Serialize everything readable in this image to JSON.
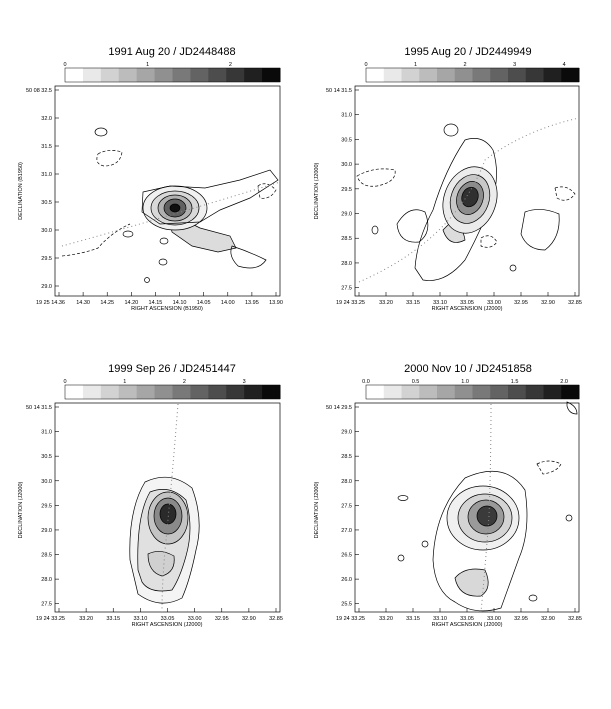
{
  "panels": [
    {
      "title": "1991 Aug 20 / JD2448488",
      "colorbar_ticks": [
        "0",
        "1",
        "2"
      ],
      "colorbar_tick_values": [
        0,
        1,
        2
      ],
      "colorbar_max": 2.6,
      "ylabel": "DECLINATION (B1950)",
      "xlabel": "RIGHT ASCENSION (B1950)",
      "yticks": [
        "50 08 32.5",
        "32.0",
        "31.5",
        "31.0",
        "30.5",
        "30.0",
        "29.5",
        "29.0"
      ],
      "xticks": [
        "19 25 14.36",
        "14.30",
        "14.25",
        "14.20",
        "14.15",
        "14.10",
        "14.05",
        "14.00",
        "13.95",
        "13.90"
      ]
    },
    {
      "title": "1995 Aug 20 / JD2449949",
      "colorbar_ticks": [
        "0",
        "1",
        "2",
        "3",
        "4"
      ],
      "colorbar_tick_values": [
        0,
        1,
        2,
        3,
        4
      ],
      "colorbar_max": 4.3,
      "ylabel": "DECLINATION (J2000)",
      "xlabel": "RIGHT ASCENSION (J2000)",
      "yticks": [
        "50 14 31.5",
        "31.0",
        "30.5",
        "30.0",
        "29.5",
        "29.0",
        "28.5",
        "28.0",
        "27.5"
      ],
      "xticks": [
        "19 24 33.25",
        "33.20",
        "33.15",
        "33.10",
        "33.05",
        "33.00",
        "32.95",
        "32.90",
        "32.85"
      ]
    },
    {
      "title": "1999 Sep 26 / JD2451447",
      "colorbar_ticks": [
        "0",
        "1",
        "2",
        "3"
      ],
      "colorbar_tick_values": [
        0,
        1,
        2,
        3
      ],
      "colorbar_max": 3.6,
      "ylabel": "DECLINATION (J2000)",
      "xlabel": "RIGHT ASCENSION (J2000)",
      "yticks": [
        "50 14 31.5",
        "31.0",
        "30.5",
        "30.0",
        "29.5",
        "29.0",
        "28.5",
        "28.0",
        "27.5"
      ],
      "xticks": [
        "19 24 33.25",
        "33.20",
        "33.15",
        "33.10",
        "33.05",
        "33.00",
        "32.95",
        "32.90",
        "32.85"
      ]
    },
    {
      "title": "2000 Nov 10 / JD2451858",
      "colorbar_ticks": [
        "0.0",
        "0.5",
        "1.0",
        "1.5",
        "2.0"
      ],
      "colorbar_tick_values": [
        0,
        0.5,
        1.0,
        1.5,
        2.0
      ],
      "colorbar_max": 2.15,
      "ylabel": "DECLINATION (J2000)",
      "xlabel": "RIGHT ASCENSION (J2000)",
      "yticks": [
        "50 14 29.5",
        "29.0",
        "28.5",
        "28.0",
        "27.5",
        "27.0",
        "26.5",
        "26.0",
        "25.5"
      ],
      "xticks": [
        "19 24 33.25",
        "33.20",
        "33.15",
        "33.10",
        "33.05",
        "33.00",
        "32.95",
        "32.90",
        "32.85"
      ]
    }
  ]
}
